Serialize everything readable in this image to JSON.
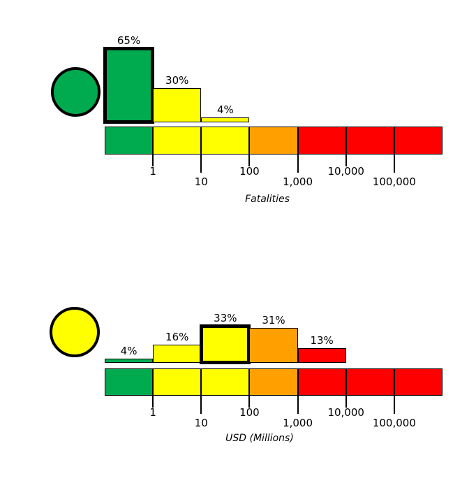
{
  "colors": {
    "green": "#00AB50",
    "yellow": "#FFFF00",
    "orange": "#FFA000",
    "red": "#FF0000",
    "outline": "#000000",
    "background": "#FFFFFF"
  },
  "chart_data": [
    {
      "type": "bar",
      "id": "fatalities",
      "xlabel": "Fatalities",
      "x_scale": "log",
      "tick_labels": [
        "1",
        "10",
        "100",
        "1,000",
        "10,000",
        "100,000"
      ],
      "indicator": {
        "shape": "circle",
        "color_name": "green"
      },
      "bars": [
        {
          "label": "65%",
          "value": 65,
          "bin": "<1",
          "color_name": "green",
          "bold_outline": true
        },
        {
          "label": "30%",
          "value": 30,
          "bin": "1-10",
          "color_name": "yellow",
          "bold_outline": false
        },
        {
          "label": "4%",
          "value": 4,
          "bin": "10-100",
          "color_name": "yellow",
          "bold_outline": false
        }
      ],
      "bar_start_segment": 0,
      "colorscale_segments": [
        "green",
        "yellow",
        "yellow",
        "orange",
        "red",
        "red",
        "red"
      ]
    },
    {
      "type": "bar",
      "id": "usd",
      "xlabel": "USD (Millions)",
      "x_scale": "log",
      "tick_labels": [
        "1",
        "10",
        "100",
        "1,000",
        "10,000",
        "100,000"
      ],
      "indicator": {
        "shape": "circle",
        "color_name": "yellow"
      },
      "bars": [
        {
          "label": "4%",
          "value": 4,
          "bin": "<1",
          "color_name": "green",
          "bold_outline": false
        },
        {
          "label": "16%",
          "value": 16,
          "bin": "1-10",
          "color_name": "yellow",
          "bold_outline": false
        },
        {
          "label": "33%",
          "value": 33,
          "bin": "10-100",
          "color_name": "yellow",
          "bold_outline": true
        },
        {
          "label": "31%",
          "value": 31,
          "bin": "100-1,000",
          "color_name": "orange",
          "bold_outline": false
        },
        {
          "label": "13%",
          "value": 13,
          "bin": "1,000-10,000",
          "color_name": "red",
          "bold_outline": false
        }
      ],
      "bar_start_segment": 0,
      "colorscale_segments": [
        "green",
        "yellow",
        "yellow",
        "orange",
        "red",
        "red",
        "red"
      ]
    }
  ]
}
